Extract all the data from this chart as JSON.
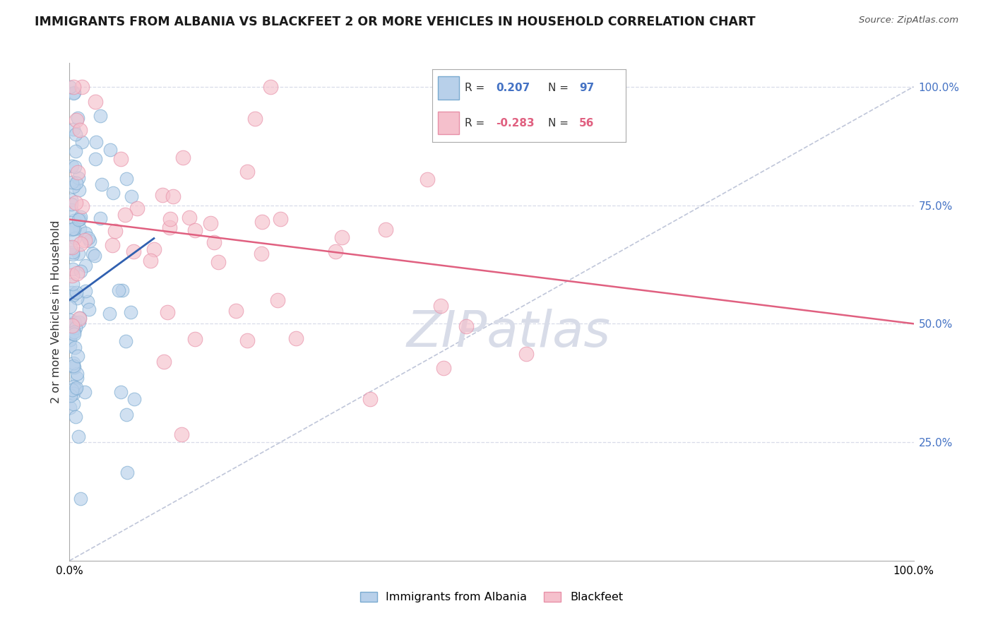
{
  "title": "IMMIGRANTS FROM ALBANIA VS BLACKFEET 2 OR MORE VEHICLES IN HOUSEHOLD CORRELATION CHART",
  "source": "Source: ZipAtlas.com",
  "ylabel": "2 or more Vehicles in Household",
  "legend_albania": {
    "label": "Immigrants from Albania",
    "R": "0.207",
    "N": "97",
    "color_face": "#b8d0ea",
    "color_edge": "#7aaad0"
  },
  "legend_blackfeet": {
    "label": "Blackfeet",
    "R": "-0.283",
    "N": "56",
    "color_face": "#f5c0cc",
    "color_edge": "#e890a8"
  },
  "albania_color_face": "#b8d0ea",
  "albania_color_edge": "#7aaad0",
  "blackfeet_color_face": "#f5c0cc",
  "blackfeet_color_edge": "#e890a8",
  "albania_trend_color": "#3060b0",
  "blackfeet_trend_color": "#e06080",
  "diagonal_color": "#b0b8d0",
  "grid_color": "#d8dce8",
  "background_color": "#ffffff",
  "watermark_text": "ZIPatlas",
  "watermark_color": "#d8dce8",
  "ytick_values": [
    25,
    50,
    75,
    100
  ],
  "ytick_labels": [
    "25.0%",
    "50.0%",
    "75.0%",
    "100.0%"
  ],
  "xlim": [
    0,
    100
  ],
  "ylim": [
    0,
    105
  ]
}
